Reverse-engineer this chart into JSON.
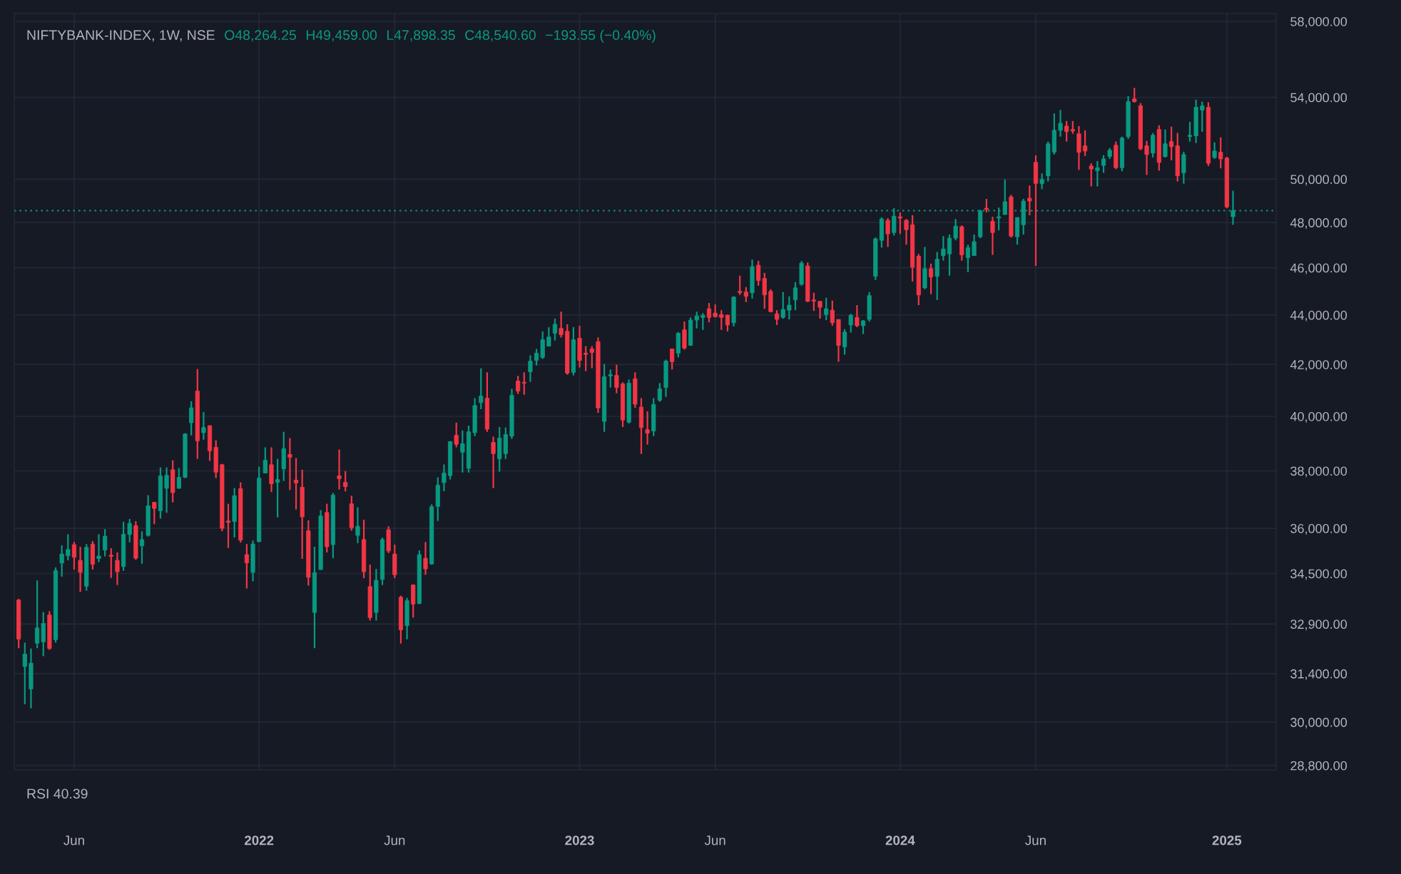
{
  "chart_data": {
    "type": "candlestick",
    "title": "NIFTYBANK-INDEX, 1W, NSE",
    "annotations": [
      "O48,264.25",
      "H49,459.00",
      "L47,898.35",
      "C48,540.60",
      "−193.55 (−0.40%)",
      "RSI 40.39"
    ],
    "x": [
      "2021-04-05",
      "2021-04-12",
      "2021-04-19",
      "2021-04-26",
      "2021-05-03",
      "2021-05-10",
      "2021-05-17",
      "2021-05-24",
      "2021-05-31",
      "2021-06-07",
      "2021-06-14",
      "2021-06-21",
      "2021-06-28",
      "2021-07-05",
      "2021-07-12",
      "2021-07-19",
      "2021-07-26",
      "2021-08-02",
      "2021-08-09",
      "2021-08-16",
      "2021-08-23",
      "2021-08-30",
      "2021-09-06",
      "2021-09-13",
      "2021-09-20",
      "2021-09-27",
      "2021-10-04",
      "2021-10-11",
      "2021-10-18",
      "2021-10-25",
      "2021-11-01",
      "2021-11-08",
      "2021-11-15",
      "2021-11-22",
      "2021-11-29",
      "2021-12-06",
      "2021-12-13",
      "2021-12-20",
      "2021-12-27",
      "2022-01-03",
      "2022-01-10",
      "2022-01-17",
      "2022-01-24",
      "2022-01-31",
      "2022-02-07",
      "2022-02-14",
      "2022-02-21",
      "2022-02-28",
      "2022-03-07",
      "2022-03-14",
      "2022-03-21",
      "2022-03-28",
      "2022-04-04",
      "2022-04-11",
      "2022-04-18",
      "2022-04-25",
      "2022-05-02",
      "2022-05-09",
      "2022-05-16",
      "2022-05-23",
      "2022-05-30",
      "2022-06-06",
      "2022-06-13",
      "2022-06-20",
      "2022-06-27",
      "2022-07-04",
      "2022-07-11",
      "2022-07-18",
      "2022-07-25",
      "2022-08-01",
      "2022-08-08",
      "2022-08-15",
      "2022-08-22",
      "2022-08-29",
      "2022-09-05",
      "2022-09-12",
      "2022-09-19",
      "2022-09-26",
      "2022-10-03",
      "2022-10-10",
      "2022-10-17",
      "2022-10-24",
      "2022-10-31",
      "2022-11-07",
      "2022-11-14",
      "2022-11-21",
      "2022-11-28",
      "2022-12-05",
      "2022-12-12",
      "2022-12-19",
      "2022-12-26",
      "2023-01-02",
      "2023-01-09",
      "2023-01-16",
      "2023-01-23",
      "2023-01-30",
      "2023-02-06",
      "2023-02-13",
      "2023-02-20",
      "2023-02-27",
      "2023-03-06",
      "2023-03-13",
      "2023-03-20",
      "2023-03-27",
      "2023-04-03",
      "2023-04-10",
      "2023-04-17",
      "2023-04-24",
      "2023-05-01",
      "2023-05-08",
      "2023-05-15",
      "2023-05-22",
      "2023-05-29",
      "2023-06-05",
      "2023-06-12",
      "2023-06-19",
      "2023-06-26",
      "2023-07-03",
      "2023-07-10",
      "2023-07-17",
      "2023-07-24",
      "2023-07-31",
      "2023-08-07",
      "2023-08-14",
      "2023-08-21",
      "2023-08-28",
      "2023-09-04",
      "2023-09-11",
      "2023-09-18",
      "2023-09-25",
      "2023-10-02",
      "2023-10-09",
      "2023-10-16",
      "2023-10-23",
      "2023-10-30",
      "2023-11-06",
      "2023-11-13",
      "2023-11-20",
      "2023-11-27",
      "2023-12-04",
      "2023-12-11",
      "2023-12-18",
      "2023-12-25",
      "2024-01-01",
      "2024-01-08",
      "2024-01-15",
      "2024-01-22",
      "2024-01-29",
      "2024-02-05",
      "2024-02-12",
      "2024-02-19",
      "2024-02-26",
      "2024-03-04",
      "2024-03-11",
      "2024-03-18",
      "2024-03-25",
      "2024-04-01",
      "2024-04-08",
      "2024-04-15",
      "2024-04-22",
      "2024-04-29",
      "2024-05-06",
      "2024-05-13",
      "2024-05-20",
      "2024-05-27",
      "2024-06-03",
      "2024-06-10",
      "2024-06-17",
      "2024-06-24",
      "2024-07-01",
      "2024-07-08",
      "2024-07-15",
      "2024-07-22",
      "2024-07-29",
      "2024-08-05",
      "2024-08-12",
      "2024-08-19",
      "2024-08-26",
      "2024-09-02",
      "2024-09-09",
      "2024-09-16",
      "2024-09-23",
      "2024-09-30",
      "2024-10-07",
      "2024-10-14",
      "2024-10-21",
      "2024-10-28",
      "2024-11-04",
      "2024-11-11",
      "2024-11-18",
      "2024-11-25",
      "2024-12-02",
      "2024-12-09",
      "2024-12-16",
      "2024-12-23",
      "2024-12-30",
      "2025-01-06",
      "2025-01-13"
    ],
    "ohlc": [
      [
        33650,
        33690,
        32160,
        32440
      ],
      [
        31610,
        32330,
        30510,
        31980
      ],
      [
        30950,
        32150,
        30390,
        31710
      ],
      [
        32310,
        34280,
        32160,
        32780
      ],
      [
        32350,
        33270,
        31920,
        32920
      ],
      [
        33180,
        33300,
        32110,
        32150
      ],
      [
        32420,
        34700,
        32330,
        34600
      ],
      [
        34840,
        35430,
        34400,
        35140
      ],
      [
        35080,
        35800,
        34930,
        35290
      ],
      [
        35450,
        35540,
        34630,
        35030
      ],
      [
        34930,
        35380,
        33910,
        34540
      ],
      [
        34090,
        35470,
        33950,
        35360
      ],
      [
        35470,
        35570,
        34630,
        34800
      ],
      [
        34990,
        35800,
        34870,
        35070
      ],
      [
        35270,
        35970,
        35060,
        35730
      ],
      [
        35100,
        35330,
        34360,
        35060
      ],
      [
        34930,
        35190,
        34130,
        34560
      ],
      [
        34730,
        36220,
        34590,
        35800
      ],
      [
        35790,
        36320,
        35530,
        36170
      ],
      [
        36090,
        36240,
        34950,
        35000
      ],
      [
        35410,
        35900,
        34820,
        35620
      ],
      [
        35760,
        37140,
        35720,
        36770
      ],
      [
        36890,
        36910,
        36140,
        36680
      ],
      [
        36600,
        38120,
        36330,
        37820
      ],
      [
        37380,
        38120,
        36530,
        37840
      ],
      [
        38040,
        38380,
        36890,
        37230
      ],
      [
        37380,
        38100,
        37370,
        37770
      ],
      [
        37770,
        39370,
        37740,
        39340
      ],
      [
        39760,
        40570,
        39290,
        40320
      ],
      [
        40960,
        41820,
        38430,
        39090
      ],
      [
        39390,
        40160,
        39130,
        39580
      ],
      [
        39650,
        39660,
        38360,
        38720
      ],
      [
        38850,
        39110,
        37740,
        37950
      ],
      [
        38220,
        38250,
        35900,
        36000
      ],
      [
        36250,
        36840,
        35340,
        36200
      ],
      [
        36230,
        37390,
        35690,
        37120
      ],
      [
        37370,
        37590,
        35520,
        35600
      ],
      [
        35120,
        35470,
        34020,
        34850
      ],
      [
        34540,
        35590,
        34250,
        35470
      ],
      [
        35550,
        38150,
        35530,
        37740
      ],
      [
        37920,
        38850,
        37920,
        38380
      ],
      [
        38220,
        38850,
        37250,
        37540
      ],
      [
        37590,
        38430,
        36370,
        37690
      ],
      [
        38070,
        39420,
        37640,
        38800
      ],
      [
        38590,
        39190,
        37320,
        38490
      ],
      [
        37670,
        38460,
        36640,
        37570
      ],
      [
        37420,
        38040,
        34980,
        36390
      ],
      [
        35920,
        36270,
        34110,
        34380
      ],
      [
        33260,
        35380,
        32160,
        34530
      ],
      [
        34630,
        36620,
        34620,
        36420
      ],
      [
        36540,
        36840,
        35190,
        35380
      ],
      [
        35450,
        37220,
        35000,
        37140
      ],
      [
        37820,
        38770,
        37340,
        37720
      ],
      [
        37590,
        37990,
        37270,
        37440
      ],
      [
        36840,
        37120,
        35920,
        36020
      ],
      [
        35760,
        36720,
        35500,
        36070
      ],
      [
        35620,
        36290,
        34350,
        34560
      ],
      [
        34080,
        34790,
        33010,
        33100
      ],
      [
        33260,
        34650,
        33010,
        34280
      ],
      [
        34310,
        35690,
        34130,
        35620
      ],
      [
        35950,
        36070,
        35170,
        35240
      ],
      [
        35140,
        35450,
        34350,
        34460
      ],
      [
        33740,
        33790,
        32300,
        32720
      ],
      [
        32850,
        33720,
        32430,
        33630
      ],
      [
        34130,
        34150,
        33100,
        33520
      ],
      [
        33540,
        35260,
        33520,
        35120
      ],
      [
        35000,
        35540,
        34460,
        34650
      ],
      [
        34810,
        36820,
        34790,
        36740
      ],
      [
        36750,
        37770,
        36250,
        37490
      ],
      [
        37580,
        38230,
        37280,
        37920
      ],
      [
        37830,
        39080,
        37690,
        39060
      ],
      [
        39290,
        39760,
        38850,
        38960
      ],
      [
        38670,
        39470,
        37940,
        38980
      ],
      [
        38090,
        39650,
        37940,
        39420
      ],
      [
        39390,
        40690,
        39260,
        40410
      ],
      [
        40520,
        41850,
        40270,
        40770
      ],
      [
        40690,
        41690,
        39420,
        39520
      ],
      [
        39030,
        39240,
        37390,
        38620
      ],
      [
        38430,
        39600,
        37970,
        39190
      ],
      [
        38620,
        39580,
        38430,
        39320
      ],
      [
        39260,
        41050,
        39160,
        40800
      ],
      [
        41350,
        41550,
        40850,
        40960
      ],
      [
        41300,
        41690,
        40820,
        41270
      ],
      [
        41710,
        42360,
        41320,
        42130
      ],
      [
        42160,
        42620,
        41960,
        42450
      ],
      [
        42280,
        43330,
        42220,
        42990
      ],
      [
        42730,
        43500,
        42730,
        43100
      ],
      [
        43250,
        43850,
        42960,
        43620
      ],
      [
        43450,
        44140,
        43080,
        43190
      ],
      [
        43330,
        43620,
        41600,
        41660
      ],
      [
        41690,
        43500,
        41570,
        42990
      ],
      [
        43050,
        43560,
        41880,
        42160
      ],
      [
        42450,
        42730,
        41740,
        42400
      ],
      [
        42620,
        42730,
        41850,
        42480
      ],
      [
        42910,
        43080,
        40130,
        40320
      ],
      [
        39810,
        42020,
        39420,
        41520
      ],
      [
        41550,
        41800,
        41100,
        41600
      ],
      [
        41570,
        41990,
        40880,
        41100
      ],
      [
        41240,
        41300,
        39600,
        39860
      ],
      [
        39780,
        41410,
        39730,
        41270
      ],
      [
        41440,
        41690,
        40320,
        40460
      ],
      [
        40350,
        40690,
        38610,
        39580
      ],
      [
        39500,
        40190,
        38950,
        39370
      ],
      [
        39450,
        40690,
        39260,
        40450
      ],
      [
        40610,
        41270,
        40550,
        41050
      ],
      [
        41100,
        42190,
        40740,
        42130
      ],
      [
        42620,
        42620,
        41800,
        42110
      ],
      [
        42450,
        43300,
        42280,
        43250
      ],
      [
        43390,
        43730,
        42590,
        42650
      ],
      [
        42760,
        43900,
        42760,
        43790
      ],
      [
        43790,
        44140,
        43450,
        43960
      ],
      [
        43900,
        44080,
        43390,
        43990
      ],
      [
        44260,
        44500,
        43700,
        43900
      ],
      [
        44080,
        44440,
        43900,
        43930
      ],
      [
        44020,
        44200,
        43390,
        43900
      ],
      [
        43990,
        44020,
        43330,
        43590
      ],
      [
        43680,
        44780,
        43530,
        44750
      ],
      [
        44990,
        45660,
        44840,
        44940
      ],
      [
        44960,
        45170,
        44540,
        44780
      ],
      [
        44930,
        46360,
        44690,
        46050
      ],
      [
        46110,
        46300,
        45230,
        45450
      ],
      [
        45540,
        45780,
        44260,
        44840
      ],
      [
        44990,
        45080,
        44110,
        44140
      ],
      [
        44050,
        44200,
        43590,
        43820
      ],
      [
        43900,
        44960,
        43850,
        44230
      ],
      [
        44200,
        44780,
        43820,
        44410
      ],
      [
        44630,
        45380,
        44200,
        45140
      ],
      [
        45290,
        46290,
        45230,
        46200
      ],
      [
        46080,
        46230,
        44540,
        44570
      ],
      [
        44630,
        44930,
        44170,
        44580
      ],
      [
        44570,
        44570,
        43850,
        44320
      ],
      [
        44020,
        44720,
        43790,
        44260
      ],
      [
        44200,
        44600,
        43560,
        43680
      ],
      [
        43820,
        43820,
        42110,
        42760
      ],
      [
        42700,
        43420,
        42390,
        43300
      ],
      [
        43590,
        44050,
        43280,
        43990
      ],
      [
        43900,
        44410,
        43500,
        43560
      ],
      [
        43560,
        43790,
        43220,
        43760
      ],
      [
        43820,
        44960,
        43730,
        44810
      ],
      [
        45630,
        47330,
        45470,
        47270
      ],
      [
        47200,
        48230,
        46880,
        48160
      ],
      [
        48100,
        48200,
        46910,
        47490
      ],
      [
        47550,
        48650,
        47420,
        48290
      ],
      [
        48260,
        48460,
        47490,
        48200
      ],
      [
        48100,
        48160,
        47010,
        47680
      ],
      [
        47900,
        48330,
        45410,
        46020
      ],
      [
        46500,
        46600,
        44410,
        44840
      ],
      [
        45140,
        46910,
        45080,
        45960
      ],
      [
        45960,
        46180,
        44870,
        45600
      ],
      [
        45630,
        46690,
        44630,
        46370
      ],
      [
        46530,
        47390,
        46310,
        46820
      ],
      [
        46600,
        47460,
        45660,
        47300
      ],
      [
        47300,
        48160,
        47200,
        47840
      ],
      [
        47810,
        47870,
        46310,
        46560
      ],
      [
        46440,
        47010,
        45810,
        46880
      ],
      [
        46530,
        47460,
        46530,
        47140
      ],
      [
        47360,
        48590,
        47300,
        48520
      ],
      [
        48650,
        49080,
        48460,
        48590
      ],
      [
        48060,
        48260,
        46560,
        47550
      ],
      [
        48200,
        48680,
        47650,
        48260
      ],
      [
        48360,
        49990,
        48360,
        48950
      ],
      [
        49170,
        49270,
        47330,
        47390
      ],
      [
        47360,
        48230,
        47010,
        48230
      ],
      [
        47900,
        49080,
        47460,
        48980
      ],
      [
        49110,
        49700,
        48330,
        48980
      ],
      [
        50800,
        51130,
        46080,
        49800
      ],
      [
        49790,
        50270,
        49530,
        49990
      ],
      [
        50160,
        51800,
        49890,
        51690
      ],
      [
        51280,
        53190,
        51170,
        52350
      ],
      [
        52350,
        53360,
        52040,
        52700
      ],
      [
        52560,
        52810,
        51800,
        52290
      ],
      [
        52390,
        52810,
        52180,
        52320
      ],
      [
        52180,
        52560,
        50440,
        51280
      ],
      [
        51590,
        52350,
        51100,
        51340
      ],
      [
        50620,
        50750,
        49660,
        50480
      ],
      [
        50400,
        50860,
        49660,
        50540
      ],
      [
        50650,
        51140,
        50300,
        50960
      ],
      [
        51080,
        51490,
        50960,
        51380
      ],
      [
        51620,
        51800,
        50470,
        50540
      ],
      [
        50540,
        52040,
        50370,
        51970
      ],
      [
        52040,
        54060,
        51930,
        53780
      ],
      [
        53920,
        54480,
        53740,
        53780
      ],
      [
        53570,
        53710,
        51380,
        51450
      ],
      [
        51590,
        51830,
        50200,
        51170
      ],
      [
        51240,
        52220,
        51030,
        52110
      ],
      [
        52390,
        52600,
        50400,
        50790
      ],
      [
        51070,
        52390,
        51030,
        51690
      ],
      [
        51800,
        52530,
        50890,
        51550
      ],
      [
        51590,
        52220,
        49890,
        50160
      ],
      [
        50300,
        51310,
        49790,
        51170
      ],
      [
        52040,
        52770,
        51800,
        52110
      ],
      [
        52080,
        53880,
        51730,
        53500
      ],
      [
        53360,
        53780,
        52280,
        53570
      ],
      [
        53500,
        53750,
        50620,
        50750
      ],
      [
        51030,
        51760,
        50960,
        51340
      ],
      [
        51280,
        52010,
        50510,
        50960
      ],
      [
        51000,
        51060,
        48650,
        48710
      ],
      [
        48264.25,
        49459,
        47898.35,
        48540.6
      ]
    ],
    "colors": [
      "#f23645",
      "#089981",
      "#089981",
      "#089981",
      "#089981",
      "#f23645",
      "#089981",
      "#089981",
      "#089981",
      "#f23645",
      "#f23645",
      "#089981",
      "#f23645",
      "#089981",
      "#089981",
      "#f23645",
      "#f23645",
      "#089981",
      "#089981",
      "#f23645",
      "#089981",
      "#089981",
      "#f23645",
      "#089981",
      "#089981",
      "#f23645",
      "#089981",
      "#089981",
      "#089981",
      "#f23645",
      "#089981",
      "#f23645",
      "#f23645",
      "#f23645",
      "#f23645",
      "#089981",
      "#f23645",
      "#f23645",
      "#089981",
      "#089981",
      "#089981",
      "#f23645",
      "#089981",
      "#089981",
      "#f23645",
      "#f23645",
      "#f23645",
      "#f23645",
      "#089981",
      "#089981",
      "#f23645",
      "#089981",
      "#f23645",
      "#f23645",
      "#f23645",
      "#089981",
      "#f23645",
      "#f23645",
      "#089981",
      "#089981",
      "#f23645",
      "#f23645",
      "#f23645",
      "#089981",
      "#f23645",
      "#089981",
      "#f23645",
      "#089981",
      "#089981",
      "#089981",
      "#089981",
      "#f23645",
      "#089981",
      "#089981",
      "#089981",
      "#089981",
      "#f23645",
      "#f23645",
      "#089981",
      "#089981",
      "#089981",
      "#f23645",
      "#f23645",
      "#089981",
      "#089981",
      "#089981",
      "#089981",
      "#089981",
      "#f23645",
      "#f23645",
      "#089981",
      "#f23645",
      "#f23645",
      "#f23645",
      "#f23645",
      "#089981",
      "#089981",
      "#f23645",
      "#f23645",
      "#089981",
      "#f23645",
      "#f23645",
      "#f23645",
      "#089981",
      "#089981",
      "#089981",
      "#f23645",
      "#089981",
      "#f23645",
      "#089981",
      "#089981",
      "#089981",
      "#f23645",
      "#f23645",
      "#f23645",
      "#f23645",
      "#089981",
      "#f23645",
      "#f23645",
      "#089981",
      "#f23645",
      "#f23645",
      "#f23645",
      "#f23645",
      "#089981",
      "#089981",
      "#089981",
      "#089981",
      "#f23645",
      "#f23645",
      "#f23645",
      "#089981",
      "#f23645",
      "#f23645",
      "#089981",
      "#089981",
      "#f23645",
      "#089981",
      "#089981",
      "#089981",
      "#089981",
      "#f23645",
      "#089981",
      "#f23645",
      "#f23645",
      "#f23645",
      "#f23645",
      "#089981",
      "#f23645",
      "#089981",
      "#089981",
      "#089981",
      "#089981",
      "#f23645",
      "#089981",
      "#089981",
      "#089981",
      "#f23645",
      "#f23645",
      "#089981",
      "#089981",
      "#f23645",
      "#089981",
      "#089981",
      "#f23645",
      "#f23645",
      "#089981",
      "#089981",
      "#089981",
      "#089981",
      "#f23645",
      "#f23645",
      "#f23645",
      "#f23645",
      "#f23645",
      "#089981",
      "#089981",
      "#089981",
      "#f23645",
      "#089981",
      "#089981",
      "#f23645",
      "#f23645",
      "#f23645",
      "#089981",
      "#f23645",
      "#089981",
      "#f23645",
      "#f23645",
      "#089981",
      "#089981",
      "#089981",
      "#089981",
      "#f23645",
      "#089981",
      "#f23645",
      "#f23645",
      "#089981"
    ],
    "log": "y",
    "xlim": [
      "2021-03-31",
      "2025-03-03"
    ],
    "xticks": [
      {
        "value": "2021-06-07",
        "label": "Jun"
      },
      {
        "value": "2022-01-03",
        "label": "2022"
      },
      {
        "value": "2022-06-06",
        "label": "Jun"
      },
      {
        "value": "2023-01-02",
        "label": "2023"
      },
      {
        "value": "2023-06-05",
        "label": "Jun"
      },
      {
        "value": "2024-01-01",
        "label": "2024"
      },
      {
        "value": "2024-06-03",
        "label": "Jun"
      },
      {
        "value": "2025-01-06",
        "label": "2025"
      }
    ],
    "ylim": [
      28680,
      58430
    ],
    "yticks": [
      {
        "value": 28800,
        "label": "28,800.00"
      },
      {
        "value": 30000,
        "label": "30,000.00"
      },
      {
        "value": 31400,
        "label": "31,400.00"
      },
      {
        "value": 32900,
        "label": "32,900.00"
      },
      {
        "value": 34500,
        "label": "34,500.00"
      },
      {
        "value": 36000,
        "label": "36,000.00"
      },
      {
        "value": 38000,
        "label": "38,000.00"
      },
      {
        "value": 40000,
        "label": "40,000.00"
      },
      {
        "value": 42000,
        "label": "42,000.00"
      },
      {
        "value": 44000,
        "label": "44,000.00"
      },
      {
        "value": 46000,
        "label": "46,000.00"
      },
      {
        "value": 48000,
        "label": "48,000.00"
      },
      {
        "value": 50000,
        "label": "50,000.00"
      },
      {
        "value": 54000,
        "label": "54,000.00"
      },
      {
        "value": 58000,
        "label": "58,000.00"
      }
    ],
    "ref_lines": [
      {
        "axis": "y",
        "value": 48540.6,
        "color": "#089981",
        "line_style": "dotted"
      }
    ],
    "grid": true,
    "legend": false
  }
}
